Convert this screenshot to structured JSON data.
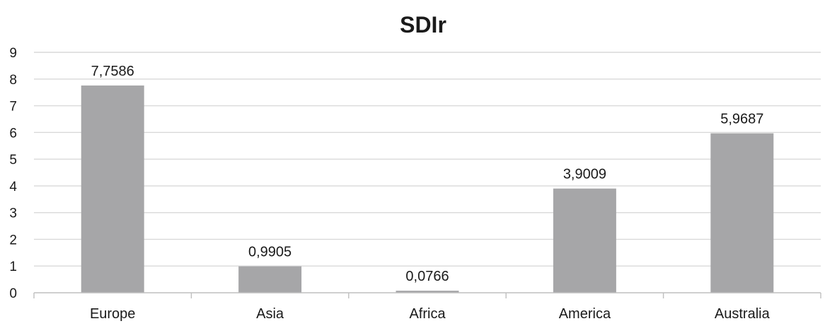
{
  "chart_data": {
    "type": "bar",
    "title": "SDIr",
    "xlabel": "",
    "ylabel": "",
    "categories": [
      "Europe",
      "Asia",
      "Africa",
      "America",
      "Australia"
    ],
    "values": [
      7.7586,
      0.9905,
      0.0766,
      3.9009,
      5.9687
    ],
    "data_labels": [
      "7,7586",
      "0,9905",
      "0,0766",
      "3,9009",
      "5,9687"
    ],
    "ylim": [
      0,
      9
    ],
    "yticks": [
      "0",
      "1",
      "2",
      "3",
      "4",
      "5",
      "6",
      "7",
      "8",
      "9"
    ],
    "grid": true,
    "legend": "none",
    "bar_color": "#a6a6a8"
  }
}
